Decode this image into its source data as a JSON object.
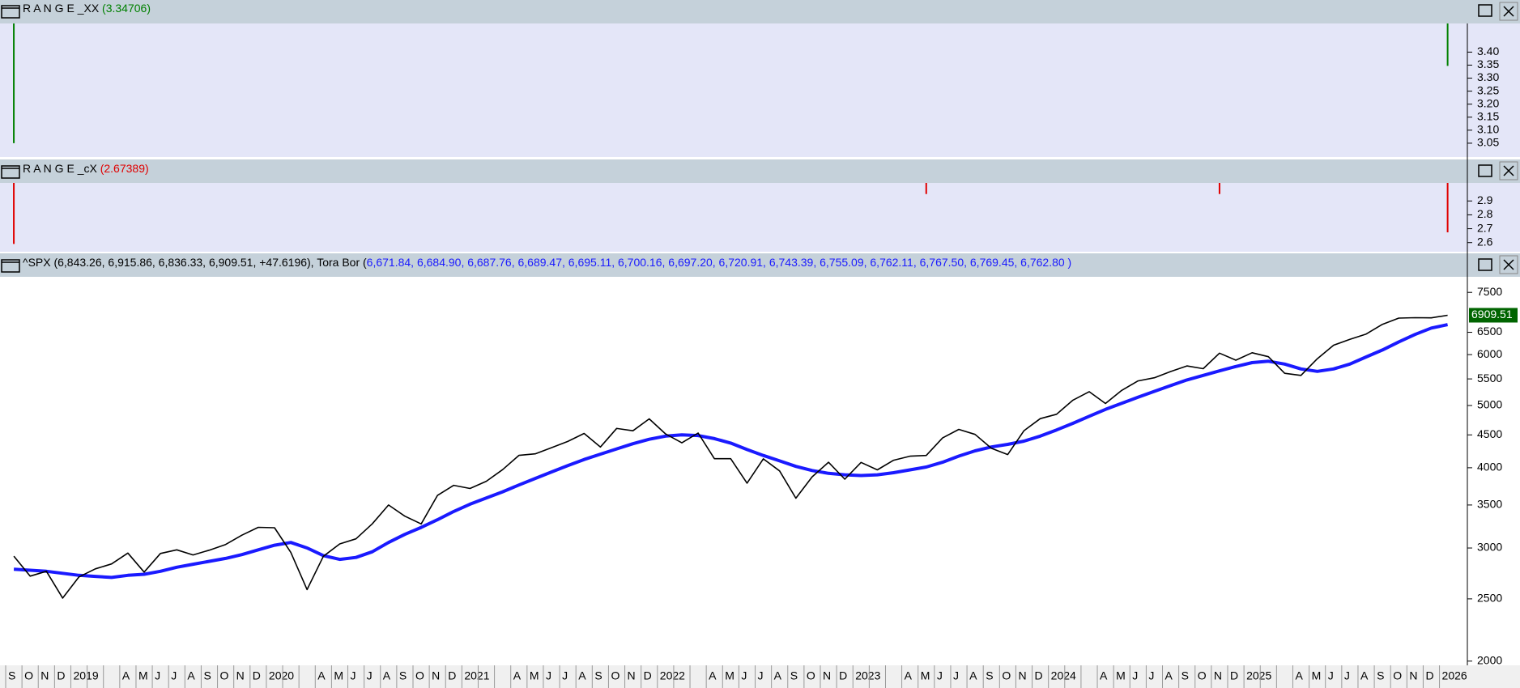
{
  "chart_data": [
    {
      "type": "spike",
      "title": "R A N G E _XX",
      "subtitle": "(3.34706)",
      "color": "#008000",
      "ylim": [
        3.0,
        3.51
      ],
      "yticks": [
        3.05,
        {
          "value": 3.1,
          "label": "3.10"
        },
        3.15,
        {
          "value": 3.2,
          "label": "3.20"
        },
        3.25,
        {
          "value": 3.3,
          "label": "3.30"
        },
        3.35,
        {
          "value": 3.4,
          "label": "3.40"
        }
      ],
      "values": [
        3.05,
        null,
        null,
        null,
        null,
        null,
        null,
        null,
        null,
        null,
        null,
        null,
        null,
        null,
        null,
        null,
        null,
        null,
        null,
        null,
        null,
        null,
        null,
        null,
        null,
        null,
        null,
        null,
        null,
        null,
        null,
        null,
        null,
        null,
        null,
        null,
        null,
        null,
        null,
        null,
        null,
        null,
        null,
        null,
        null,
        null,
        null,
        null,
        null,
        null,
        null,
        null,
        null,
        null,
        null,
        null,
        null,
        null,
        null,
        null,
        null,
        null,
        null,
        null,
        null,
        null,
        null,
        null,
        null,
        null,
        null,
        null,
        null,
        null,
        null,
        null,
        null,
        null,
        null,
        null,
        null,
        null,
        null,
        null,
        null,
        null,
        null,
        null,
        3.34706
      ]
    },
    {
      "type": "spike",
      "title": "R A N G E _cX",
      "subtitle": "(2.67389)",
      "color": "#e00000",
      "ylim": [
        2.54,
        3.03
      ],
      "yticks": [
        2.6,
        2.7,
        2.8,
        2.9
      ],
      "values": [
        2.59,
        null,
        null,
        null,
        null,
        null,
        null,
        null,
        null,
        null,
        null,
        null,
        null,
        null,
        null,
        null,
        null,
        null,
        null,
        null,
        null,
        null,
        null,
        null,
        null,
        null,
        null,
        null,
        null,
        null,
        null,
        null,
        null,
        null,
        null,
        null,
        null,
        null,
        null,
        null,
        null,
        null,
        null,
        null,
        null,
        null,
        null,
        null,
        null,
        null,
        null,
        null,
        null,
        null,
        null,
        null,
        2.95,
        null,
        null,
        null,
        null,
        null,
        null,
        null,
        null,
        null,
        null,
        null,
        null,
        null,
        null,
        null,
        null,
        null,
        2.95,
        null,
        null,
        null,
        null,
        null,
        null,
        null,
        null,
        null,
        null,
        null,
        null,
        null,
        2.67389
      ]
    },
    {
      "type": "line",
      "title": "^SPX (6,843.26, 6,915.86, 6,836.33, 6,909.51, +47.6196), Tora Bor (",
      "subtitle": "6,671.84, 6,684.90, 6,687.76, 6,689.47, 6,695.11, 6,700.16, 6,697.20, 6,720.91, 6,743.39, 6,755.09, 6,762.11, 6,767.50, 6,769.45, 6,762.80 )",
      "log_scale": true,
      "grid": false,
      "ylim": [
        1970,
        7930
      ],
      "yticks": [
        2000,
        2500,
        3000,
        3500,
        4000,
        4500,
        5000,
        5500,
        6000,
        6500,
        7500
      ],
      "categories": [
        "S",
        "O",
        "N",
        "D",
        "2019",
        null,
        null,
        "A",
        "M",
        "J",
        "J",
        "A",
        "S",
        "O",
        "N",
        "D",
        "2020",
        null,
        null,
        "A",
        "M",
        "J",
        "J",
        "A",
        "S",
        "O",
        "N",
        "D",
        "2021",
        null,
        null,
        "A",
        "M",
        "J",
        "J",
        "A",
        "S",
        "O",
        "N",
        "D",
        "2022",
        null,
        null,
        "A",
        "M",
        "J",
        "J",
        "A",
        "S",
        "O",
        "N",
        "D",
        "2023",
        null,
        null,
        "A",
        "M",
        "J",
        "J",
        "A",
        "S",
        "O",
        "N",
        "D",
        "2024",
        null,
        null,
        "A",
        "M",
        "J",
        "J",
        "A",
        "S",
        "O",
        "N",
        "D",
        "2025",
        null,
        null,
        "A",
        "M",
        "J",
        "J",
        "A",
        "S",
        "O",
        "N",
        "D",
        "2026"
      ],
      "series": [
        {
          "name": "^SPX",
          "color": "#000000",
          "values": [
            2914,
            2712,
            2760,
            2507,
            2704,
            2784,
            2834,
            2946,
            2752,
            2942,
            2980,
            2926,
            2977,
            3038,
            3141,
            3231,
            3226,
            2954,
            2585,
            2912,
            3044,
            3100,
            3271,
            3500,
            3363,
            3270,
            3622,
            3756,
            3714,
            3811,
            3973,
            4181,
            4204,
            4298,
            4395,
            4523,
            4308,
            4605,
            4567,
            4766,
            4516,
            4374,
            4530,
            4132,
            4132,
            3785,
            4130,
            3955,
            3586,
            3872,
            4080,
            3840,
            4077,
            3970,
            4109,
            4169,
            4180,
            4450,
            4589,
            4508,
            4288,
            4194,
            4568,
            4770,
            4846,
            5096,
            5254,
            5036,
            5278,
            5460,
            5522,
            5648,
            5762,
            5705,
            6032,
            5882,
            6041,
            5955,
            5612,
            5569,
            5912,
            6205,
            6339,
            6460,
            6688,
            6840,
            6849,
            6846,
            6909.51
          ]
        },
        {
          "name": "Tora Bor",
          "color": "#1a1aff",
          "values": [
            2780,
            2770,
            2760,
            2740,
            2720,
            2710,
            2700,
            2720,
            2730,
            2760,
            2800,
            2830,
            2860,
            2890,
            2930,
            2980,
            3030,
            3060,
            3000,
            2920,
            2880,
            2900,
            2960,
            3060,
            3150,
            3230,
            3320,
            3420,
            3510,
            3590,
            3670,
            3760,
            3850,
            3940,
            4030,
            4120,
            4200,
            4280,
            4360,
            4430,
            4480,
            4500,
            4490,
            4440,
            4370,
            4270,
            4180,
            4100,
            4020,
            3960,
            3920,
            3900,
            3890,
            3900,
            3930,
            3970,
            4010,
            4080,
            4170,
            4250,
            4310,
            4350,
            4400,
            4480,
            4580,
            4690,
            4810,
            4930,
            5040,
            5150,
            5260,
            5370,
            5480,
            5570,
            5660,
            5750,
            5830,
            5860,
            5800,
            5700,
            5650,
            5700,
            5800,
            5950,
            6100,
            6280,
            6450,
            6600,
            6680
          ]
        }
      ]
    }
  ]
}
